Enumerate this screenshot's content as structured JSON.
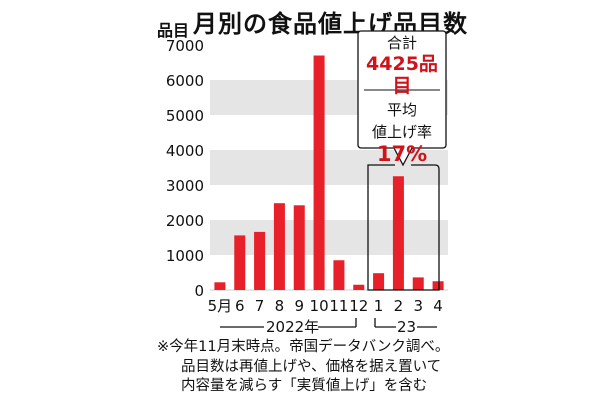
{
  "title": "月別の食品値上げ品目数",
  "unit": "品目",
  "colors": {
    "bar": "#e8202a",
    "accent": "#d0131b",
    "band": "#e5e5e5"
  },
  "callout": {
    "total_label": "合計",
    "total_value": "4425品目",
    "avg_label_1": "平均",
    "avg_label_2": "値上げ率",
    "avg_value": "17%"
  },
  "year_labels": {
    "y2022": "2022年",
    "y2023": "23"
  },
  "notes": [
    "※今年11月末時点。帝国データバンク調べ。",
    "品目数は再値上げや、価格を据え置いて",
    "内容量を減らす「実質値上げ」を含む"
  ],
  "chart_data": {
    "type": "bar",
    "title": "月別の食品値上げ品目数",
    "ylabel": "品目",
    "ylim": [
      0,
      7000
    ],
    "yticks": [
      "0",
      "1000",
      "2000",
      "3000",
      "4000",
      "5000",
      "6000",
      "7000"
    ],
    "categories": [
      "5月",
      "6",
      "7",
      "8",
      "9",
      "10",
      "11",
      "12",
      "1",
      "2",
      "3",
      "4"
    ],
    "values": [
      220,
      1560,
      1660,
      2480,
      2420,
      6700,
      850,
      150,
      480,
      3250,
      360,
      250
    ],
    "grid": "alternating horizontal bands"
  }
}
